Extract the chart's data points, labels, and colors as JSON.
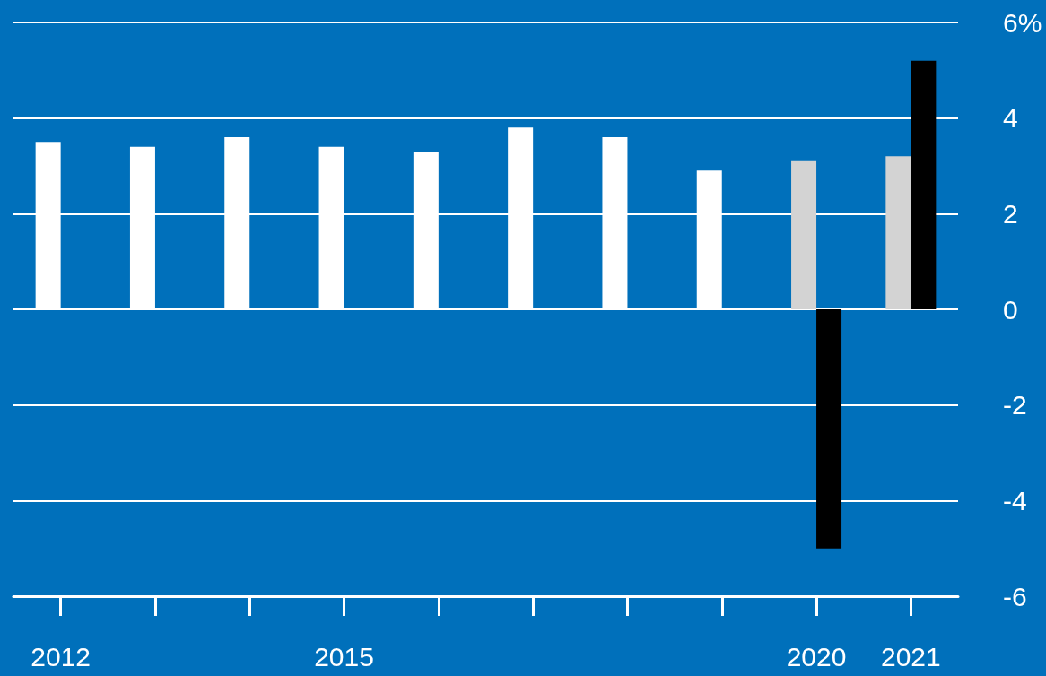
{
  "chart_data": {
    "type": "bar",
    "categories": [
      "2012",
      null,
      null,
      "2015",
      null,
      null,
      null,
      null,
      "2020",
      "2021"
    ],
    "series": [
      {
        "colors": [
          "#ffffff",
          "#ffffff",
          "#ffffff",
          "#ffffff",
          "#ffffff",
          "#ffffff",
          "#ffffff",
          "#ffffff",
          "#d3d3d3",
          "#d3d3d3"
        ],
        "values": [
          3.5,
          3.4,
          3.6,
          3.4,
          3.3,
          3.8,
          3.6,
          2.9,
          3.1,
          3.2
        ]
      },
      {
        "color": "#000000",
        "values": [
          null,
          null,
          null,
          null,
          null,
          null,
          null,
          null,
          -5.0,
          5.2
        ]
      }
    ],
    "ylim": [
      -6,
      6
    ],
    "yticks": [
      {
        "value": 6,
        "label": "6%"
      },
      4,
      2,
      0,
      -2,
      -4,
      -6
    ],
    "grid": "y"
  }
}
